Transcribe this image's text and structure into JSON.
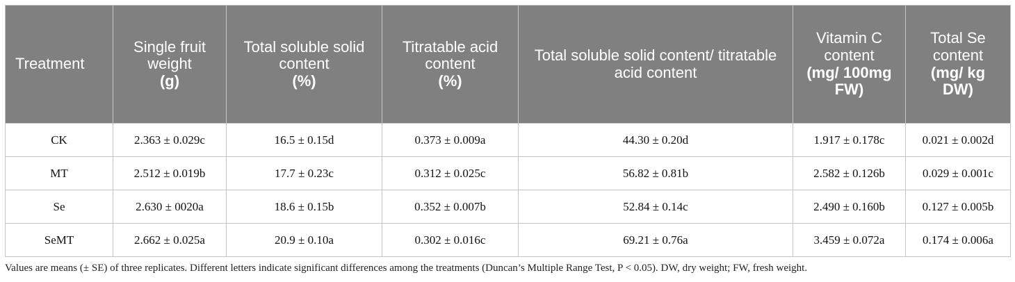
{
  "table": {
    "header": [
      {
        "label": "Treatment"
      },
      {
        "label": "Single fruit weight",
        "unit": "(g)"
      },
      {
        "label": "Total soluble solid content",
        "unit": "(%)"
      },
      {
        "label": "Titratable acid content",
        "unit": "(%)"
      },
      {
        "label": "Total soluble solid content/ titratable acid content"
      },
      {
        "label": "Vitamin C content",
        "unit": "(mg/ 100mg FW)"
      },
      {
        "label": "Total Se content",
        "unit": "(mg/ kg DW)"
      }
    ],
    "rows": [
      [
        "CK",
        "2.363 ± 0.029c",
        "16.5 ± 0.15d",
        "0.373 ± 0.009a",
        "44.30 ± 0.20d",
        "1.917 ± 0.178c",
        "0.021 ± 0.002d"
      ],
      [
        "MT",
        "2.512 ± 0.019b",
        "17.7 ± 0.23c",
        "0.312 ± 0.025c",
        "56.82 ± 0.81b",
        "2.582 ± 0.126b",
        "0.029 ± 0.001c"
      ],
      [
        "Se",
        "2.630 ± 0020a",
        "18.6 ± 0.15b",
        "0.352 ± 0.007b",
        "52.84 ± 0.14c",
        "2.490 ± 0.160b",
        "0.127 ± 0.005b"
      ],
      [
        "SeMT",
        "2.662 ± 0.025a",
        "20.9 ± 0.10a",
        "0.302 ± 0.016c",
        "69.21 ± 0.76a",
        "3.459 ± 0.072a",
        "0.174 ± 0.006a"
      ]
    ],
    "footnote": "Values are means (± SE) of three replicates. Different letters indicate significant differences among the treatments (Duncan’s Multiple Range Test, P < 0.05). DW, dry weight; FW, fresh weight."
  }
}
